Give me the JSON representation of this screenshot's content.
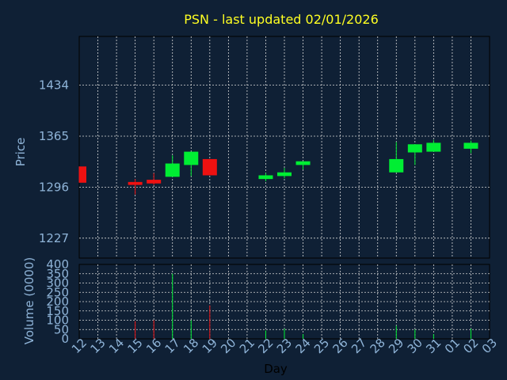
{
  "chart_data": {
    "title": "PSN - last updated 02/01/2026",
    "xlabel": "Day",
    "x_ticks": [
      "12",
      "13",
      "14",
      "15",
      "16",
      "17",
      "18",
      "19",
      "20",
      "21",
      "22",
      "23",
      "24",
      "25",
      "26",
      "27",
      "28",
      "29",
      "30",
      "31",
      "01",
      "02",
      "03"
    ],
    "price_panel": {
      "type": "candlestick",
      "ylabel": "Price",
      "y_ticks": [
        1227,
        1296,
        1365,
        1434
      ],
      "ylim": [
        1200,
        1500
      ],
      "candles": [
        {
          "day": "12",
          "open": 1324,
          "close": 1302,
          "high": 1324,
          "low": 1302
        },
        {
          "day": "15",
          "open": 1303,
          "close": 1299,
          "high": 1307,
          "low": 1286
        },
        {
          "day": "16",
          "open": 1306,
          "close": 1301,
          "high": 1315,
          "low": 1299
        },
        {
          "day": "17",
          "open": 1310,
          "close": 1328,
          "high": 1339,
          "low": 1310
        },
        {
          "day": "18",
          "open": 1326,
          "close": 1344,
          "high": 1344,
          "low": 1311
        },
        {
          "day": "19",
          "open": 1334,
          "close": 1312,
          "high": 1334,
          "low": 1312
        },
        {
          "day": "22",
          "open": 1307,
          "close": 1312,
          "high": 1315,
          "low": 1304
        },
        {
          "day": "23",
          "open": 1311,
          "close": 1316,
          "high": 1322,
          "low": 1308
        },
        {
          "day": "24",
          "open": 1326,
          "close": 1331,
          "high": 1331,
          "low": 1320
        },
        {
          "day": "29",
          "open": 1316,
          "close": 1334,
          "high": 1357,
          "low": 1316
        },
        {
          "day": "30",
          "open": 1343,
          "close": 1354,
          "high": 1354,
          "low": 1326
        },
        {
          "day": "31",
          "open": 1344,
          "close": 1356,
          "high": 1360,
          "low": 1344
        },
        {
          "day": "02",
          "open": 1348,
          "close": 1356,
          "high": 1359,
          "low": 1342
        }
      ]
    },
    "volume_panel": {
      "type": "bar",
      "ylabel": "Volume (0000)",
      "y_ticks": [
        0,
        50,
        100,
        150,
        200,
        250,
        300,
        350,
        400
      ],
      "ylim": [
        0,
        400
      ],
      "bars": [
        {
          "day": "15",
          "value": 95
        },
        {
          "day": "16",
          "value": 100
        },
        {
          "day": "17",
          "value": 350
        },
        {
          "day": "18",
          "value": 100
        },
        {
          "day": "19",
          "value": 180
        },
        {
          "day": "22",
          "value": 45
        },
        {
          "day": "23",
          "value": 55
        },
        {
          "day": "24",
          "value": 25
        },
        {
          "day": "29",
          "value": 70
        },
        {
          "day": "30",
          "value": 50
        },
        {
          "day": "31",
          "value": 25
        },
        {
          "day": "02",
          "value": 55
        }
      ]
    },
    "colors": {
      "background": "#0f2035",
      "up": "#00ee33",
      "down": "#ee1111",
      "grid": "#d8d8d8",
      "axis_text": "#8fb4d8",
      "title": "#ffff22"
    }
  }
}
